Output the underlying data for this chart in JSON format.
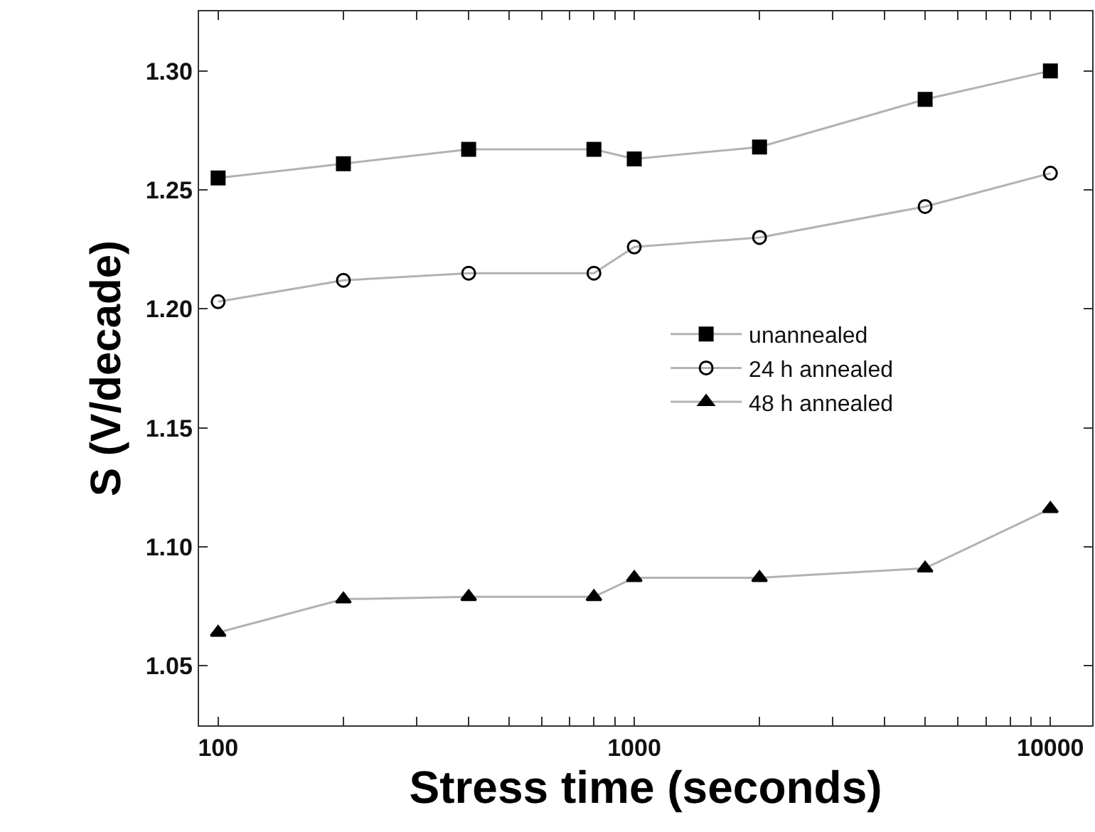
{
  "chart_data": {
    "type": "line",
    "xlabel": "Stress time (seconds)",
    "ylabel": "S (V/decade)",
    "log": "x",
    "x": [
      100,
      200,
      400,
      800,
      1000,
      2000,
      5000,
      10000
    ],
    "series": [
      {
        "name": "unannealed",
        "color": "#000000",
        "marker": "square",
        "values": [
          1.255,
          1.261,
          1.267,
          1.267,
          1.263,
          1.268,
          1.288,
          1.3
        ]
      },
      {
        "name": "24 h annealed",
        "color": "#000000",
        "marker": "circle",
        "values": [
          1.203,
          1.212,
          1.215,
          1.215,
          1.226,
          1.23,
          1.243,
          1.257
        ]
      },
      {
        "name": "48 h annealed",
        "color": "#000000",
        "marker": "triangle",
        "values": [
          1.064,
          1.078,
          1.079,
          1.079,
          1.087,
          1.087,
          1.091,
          1.116
        ]
      }
    ],
    "xlim": [
      90,
      12600
    ],
    "xticks": [
      100,
      {
        "value": 200,
        "label": null
      },
      {
        "value": 300,
        "label": null
      },
      {
        "value": 400,
        "label": null
      },
      {
        "value": 500,
        "label": null
      },
      {
        "value": 600,
        "label": null
      },
      {
        "value": 700,
        "label": null
      },
      {
        "value": 800,
        "label": null
      },
      {
        "value": 900,
        "label": null
      },
      1000,
      {
        "value": 2000,
        "label": null
      },
      {
        "value": 3000,
        "label": null
      },
      {
        "value": 4000,
        "label": null
      },
      {
        "value": 5000,
        "label": null
      },
      {
        "value": 6000,
        "label": null
      },
      {
        "value": 7000,
        "label": null
      },
      {
        "value": 8000,
        "label": null
      },
      {
        "value": 9000,
        "label": null
      },
      10000
    ],
    "ylim": [
      1.025,
      1.325
    ],
    "yticks": [
      {
        "value": 1.05,
        "label": "1.05"
      },
      {
        "value": 1.1,
        "label": "1.10"
      },
      {
        "value": 1.15,
        "label": "1.15"
      },
      {
        "value": 1.2,
        "label": "1.20"
      },
      {
        "value": 1.25,
        "label": "1.25"
      },
      {
        "value": 1.3,
        "label": "1.30"
      }
    ],
    "legend": "right"
  }
}
